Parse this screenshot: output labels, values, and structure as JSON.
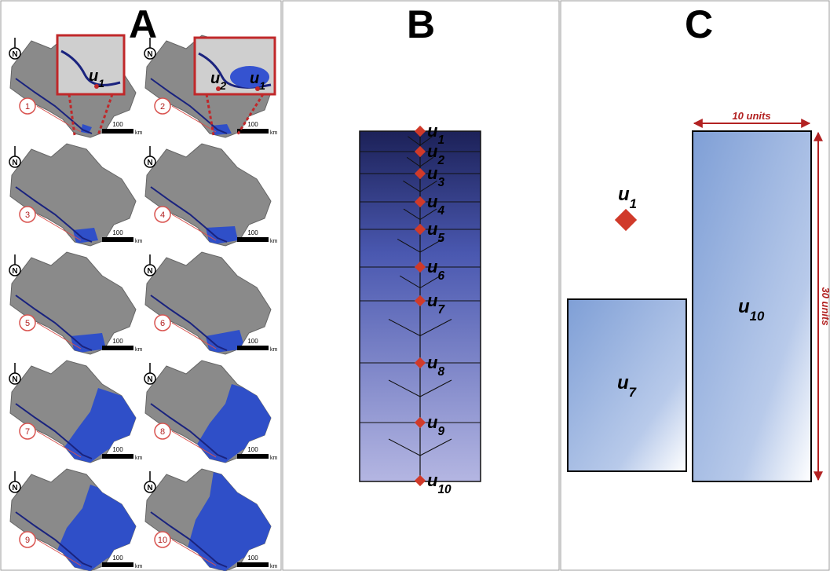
{
  "panels": [
    {
      "letter": "A",
      "maps": [
        {
          "north": "N",
          "number": "1",
          "scale": "100",
          "unit": "km"
        },
        {
          "north": "N",
          "number": "2",
          "scale": "100",
          "unit": "km"
        },
        {
          "north": "N",
          "number": "3",
          "scale": "100",
          "unit": "km"
        },
        {
          "north": "N",
          "number": "4",
          "scale": "100",
          "unit": "km"
        },
        {
          "north": "N",
          "number": "5",
          "scale": "100",
          "unit": "km"
        },
        {
          "north": "N",
          "number": "6",
          "scale": "100",
          "unit": "km"
        },
        {
          "north": "N",
          "number": "7",
          "scale": "100",
          "unit": "km"
        },
        {
          "north": "N",
          "number": "8",
          "scale": "100",
          "unit": "km"
        },
        {
          "north": "N",
          "number": "9",
          "scale": "100",
          "unit": "km"
        },
        {
          "north": "N",
          "number": "10",
          "scale": "100",
          "unit": "km"
        }
      ],
      "insets": [
        {
          "labels": [
            {
              "var": "u",
              "sub": "1"
            }
          ]
        },
        {
          "labels": [
            {
              "var": "u",
              "sub": "2"
            },
            {
              "var": "u",
              "sub": "1"
            }
          ]
        }
      ]
    },
    {
      "letter": "B",
      "nodes": [
        {
          "var": "u",
          "sub": "1"
        },
        {
          "var": "u",
          "sub": "2"
        },
        {
          "var": "u",
          "sub": "3"
        },
        {
          "var": "u",
          "sub": "4"
        },
        {
          "var": "u",
          "sub": "5"
        },
        {
          "var": "u",
          "sub": "6"
        },
        {
          "var": "u",
          "sub": "7"
        },
        {
          "var": "u",
          "sub": "8"
        },
        {
          "var": "u",
          "sub": "9"
        },
        {
          "var": "u",
          "sub": "10"
        }
      ]
    },
    {
      "letter": "C",
      "point": {
        "var": "u",
        "sub": "1"
      },
      "boxes": [
        {
          "var": "u",
          "sub": "7"
        },
        {
          "var": "u",
          "sub": "10"
        }
      ],
      "width_label": "10 units",
      "height_label": "30 units"
    }
  ]
}
